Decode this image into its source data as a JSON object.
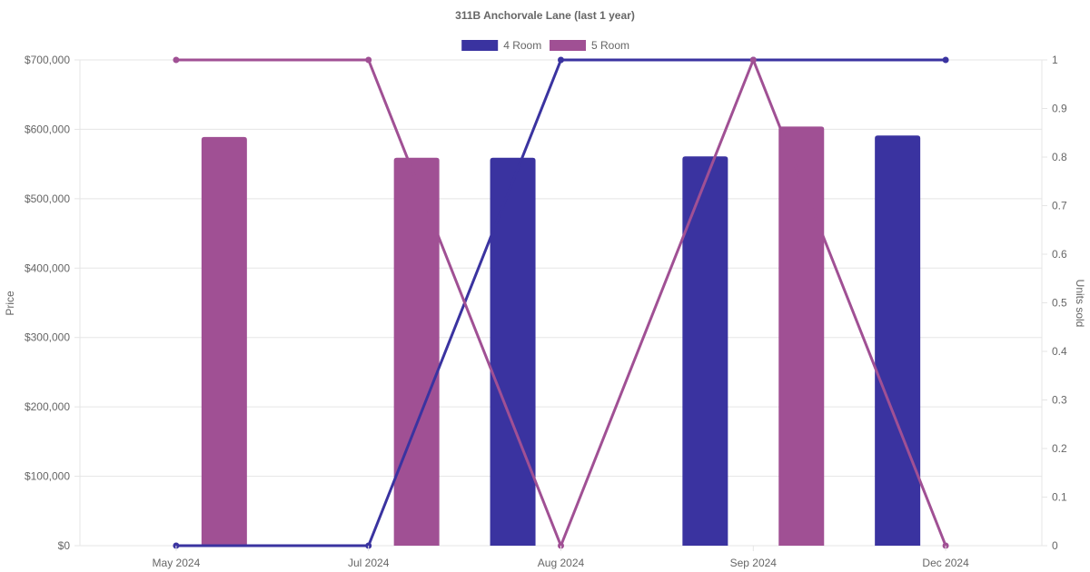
{
  "chart_data": {
    "type": "bar",
    "title": "311B Anchorvale Lane (last 1 year)",
    "categories": [
      "May 2024",
      "Jul 2024",
      "Aug 2024",
      "Sep 2024",
      "Dec 2024"
    ],
    "y_left": {
      "label": "Price",
      "range": [
        0,
        700000
      ],
      "ticks": [
        "$0",
        "$100,000",
        "$200,000",
        "$300,000",
        "$400,000",
        "$500,000",
        "$600,000",
        "$700,000"
      ]
    },
    "y_right": {
      "label": "Units sold",
      "range": [
        0,
        1
      ],
      "ticks": [
        "0",
        "0.1",
        "0.2",
        "0.3",
        "0.4",
        "0.5",
        "0.6",
        "0.7",
        "0.8",
        "0.9",
        "1"
      ]
    },
    "grid": true,
    "legend_position": "top",
    "series": [
      {
        "name": "4 Room",
        "color": "#3a33a0",
        "price": [
          null,
          null,
          559000,
          561000,
          591000
        ],
        "units_sold": [
          0,
          0,
          1,
          1,
          1
        ]
      },
      {
        "name": "5 Room",
        "color": "#a05094",
        "price": [
          589000,
          559000,
          null,
          604000,
          null
        ],
        "units_sold": [
          1,
          1,
          0,
          1,
          0
        ]
      }
    ]
  }
}
